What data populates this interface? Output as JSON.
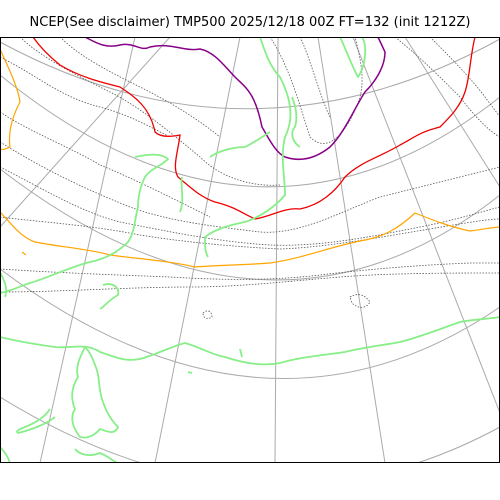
{
  "title": "NCEP(See disclaimer) TMP500 2025/12/18 00Z FT=132 (init 1212Z)",
  "map": {
    "projection": "polar-stereographic",
    "colors": {
      "background": "#ffffff",
      "graticule": "#aaaaaa",
      "coastline": "#88ee88",
      "isotherm_dotted": "#555555",
      "isotherm_purple": "#880088",
      "isotherm_red": "#ee0000",
      "isotherm_orange": "#ffa500",
      "frame": "#000000"
    }
  }
}
